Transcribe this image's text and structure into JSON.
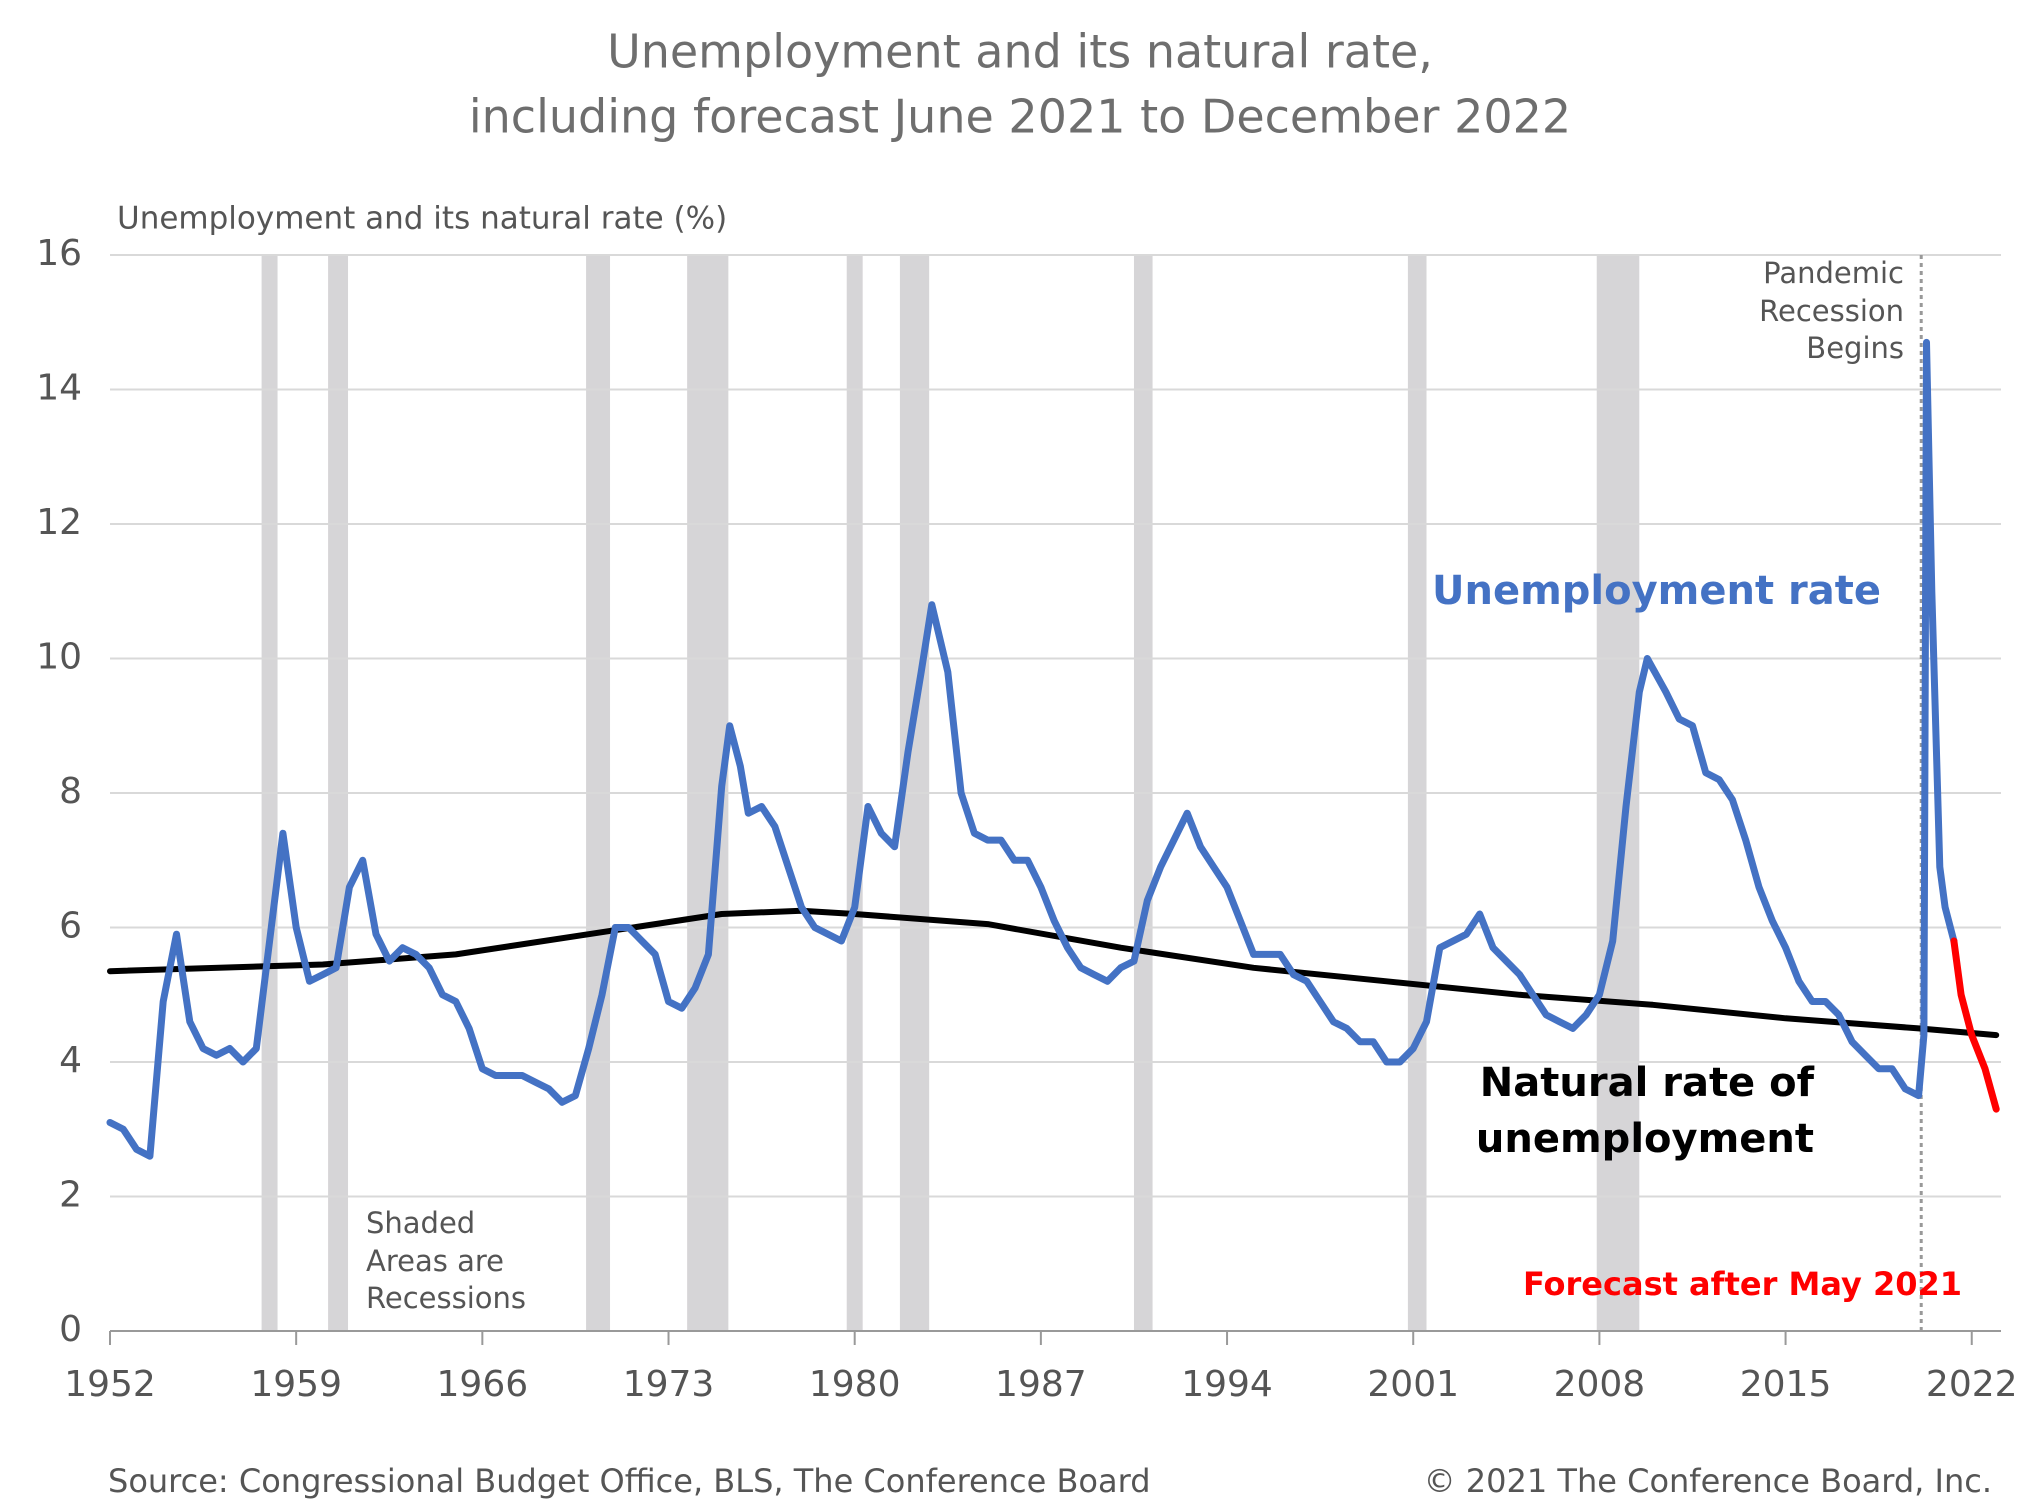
{
  "chart_data": {
    "type": "line",
    "title": "Unemployment and its natural rate,",
    "subtitle": "including forecast June 2021 to December 2022",
    "y_label": "Unemployment and its natural rate (%)",
    "source": "Source: Congressional Budget Office, BLS, The Conference Board",
    "copyright": "© 2021 The Conference Board, Inc.",
    "annotations": [
      "Pandemic Recession Begins",
      "Shaded Areas are Recessions"
    ],
    "pandemic_start": 2020.1,
    "recessions": [
      [
        1957.7,
        1958.3
      ],
      [
        1960.2,
        1960.95
      ],
      [
        1969.9,
        1970.8
      ],
      [
        1973.7,
        1975.25
      ],
      [
        1979.7,
        1980.3
      ],
      [
        1981.7,
        1982.8
      ],
      [
        1990.5,
        1991.2
      ],
      [
        2000.8,
        2001.5
      ],
      [
        2007.9,
        2009.5
      ]
    ],
    "xlim": [
      1952,
      2023.1
    ],
    "xticks": [
      1952,
      1959,
      1966,
      1973,
      1980,
      1987,
      1994,
      2001,
      2008,
      2015,
      2022
    ],
    "ylim": [
      0,
      16
    ],
    "yticks": [
      0,
      2,
      4,
      6,
      8,
      10,
      12,
      14,
      16
    ],
    "grid": true,
    "series": [
      {
        "name": "Natural rate of unemployment",
        "color": "#000000",
        "x": [
          1952,
          1960,
          1965,
          1970,
          1975,
          1978,
          1980,
          1985,
          1990,
          1995,
          2000,
          2005,
          2010,
          2015,
          2020,
          2022.92
        ],
        "values": [
          5.35,
          5.45,
          5.6,
          5.9,
          6.2,
          6.25,
          6.2,
          6.05,
          5.7,
          5.4,
          5.2,
          5.0,
          4.85,
          4.65,
          4.5,
          4.4
        ]
      },
      {
        "name": "Unemployment rate",
        "color": "#4472c4",
        "x": [
          1952.0,
          1952.5,
          1953.0,
          1953.5,
          1954.0,
          1954.5,
          1955.0,
          1955.5,
          1956.0,
          1956.5,
          1957.0,
          1957.5,
          1958.0,
          1958.5,
          1959.0,
          1959.5,
          1960.0,
          1960.5,
          1961.0,
          1961.5,
          1962.0,
          1962.5,
          1963.0,
          1963.5,
          1964.0,
          1964.5,
          1965.0,
          1965.5,
          1966.0,
          1966.5,
          1967.0,
          1967.5,
          1968.0,
          1968.5,
          1969.0,
          1969.5,
          1970.0,
          1970.5,
          1971.0,
          1971.5,
          1972.0,
          1972.5,
          1973.0,
          1973.5,
          1974.0,
          1974.5,
          1975.0,
          1975.3,
          1975.7,
          1976.0,
          1976.5,
          1977.0,
          1977.5,
          1978.0,
          1978.5,
          1979.0,
          1979.5,
          1980.0,
          1980.5,
          1981.0,
          1981.5,
          1982.0,
          1982.5,
          1982.9,
          1983.5,
          1984.0,
          1984.5,
          1985.0,
          1985.5,
          1986.0,
          1986.5,
          1987.0,
          1987.5,
          1988.0,
          1988.5,
          1989.0,
          1989.5,
          1990.0,
          1990.5,
          1991.0,
          1991.5,
          1992.0,
          1992.5,
          1993.0,
          1993.5,
          1994.0,
          1994.5,
          1995.0,
          1995.5,
          1996.0,
          1996.5,
          1997.0,
          1997.5,
          1998.0,
          1998.5,
          1999.0,
          1999.5,
          2000.0,
          2000.5,
          2001.0,
          2001.5,
          2002.0,
          2002.5,
          2003.0,
          2003.5,
          2004.0,
          2004.5,
          2005.0,
          2005.5,
          2006.0,
          2006.5,
          2007.0,
          2007.5,
          2008.0,
          2008.5,
          2009.0,
          2009.5,
          2009.8,
          2010.5,
          2011.0,
          2011.5,
          2012.0,
          2012.5,
          2013.0,
          2013.5,
          2014.0,
          2014.5,
          2015.0,
          2015.5,
          2016.0,
          2016.5,
          2017.0,
          2017.5,
          2018.0,
          2018.5,
          2019.0,
          2019.5,
          2020.0,
          2020.2,
          2020.3,
          2020.5,
          2020.8,
          2021.0,
          2021.33
        ],
        "values": [
          3.1,
          3.0,
          2.7,
          2.6,
          4.9,
          5.9,
          4.6,
          4.2,
          4.1,
          4.2,
          4.0,
          4.2,
          5.8,
          7.4,
          6.0,
          5.2,
          5.3,
          5.4,
          6.6,
          7.0,
          5.9,
          5.5,
          5.7,
          5.6,
          5.4,
          5.0,
          4.9,
          4.5,
          3.9,
          3.8,
          3.8,
          3.8,
          3.7,
          3.6,
          3.4,
          3.5,
          4.2,
          5.0,
          6.0,
          6.0,
          5.8,
          5.6,
          4.9,
          4.8,
          5.1,
          5.6,
          8.1,
          9.0,
          8.4,
          7.7,
          7.8,
          7.5,
          6.9,
          6.3,
          6.0,
          5.9,
          5.8,
          6.3,
          7.8,
          7.4,
          7.2,
          8.6,
          9.8,
          10.8,
          9.8,
          8.0,
          7.4,
          7.3,
          7.3,
          7.0,
          7.0,
          6.6,
          6.1,
          5.7,
          5.4,
          5.3,
          5.2,
          5.4,
          5.5,
          6.4,
          6.9,
          7.3,
          7.7,
          7.2,
          6.9,
          6.6,
          6.1,
          5.6,
          5.6,
          5.6,
          5.3,
          5.2,
          4.9,
          4.6,
          4.5,
          4.3,
          4.3,
          4.0,
          4.0,
          4.2,
          4.6,
          5.7,
          5.8,
          5.9,
          6.2,
          5.7,
          5.5,
          5.3,
          5.0,
          4.7,
          4.6,
          4.5,
          4.7,
          5.0,
          5.8,
          7.8,
          9.5,
          10.0,
          9.5,
          9.1,
          9.0,
          8.3,
          8.2,
          7.9,
          7.3,
          6.6,
          6.1,
          5.7,
          5.2,
          4.9,
          4.9,
          4.7,
          4.3,
          4.1,
          3.9,
          3.9,
          3.6,
          3.5,
          4.4,
          14.7,
          11.0,
          6.9,
          6.3,
          5.8
        ]
      },
      {
        "name": "Forecast after May 2021",
        "color": "#ff0000",
        "x": [
          2021.33,
          2021.6,
          2022.0,
          2022.5,
          2022.92
        ],
        "values": [
          5.8,
          5.0,
          4.4,
          3.9,
          3.3
        ]
      }
    ]
  }
}
